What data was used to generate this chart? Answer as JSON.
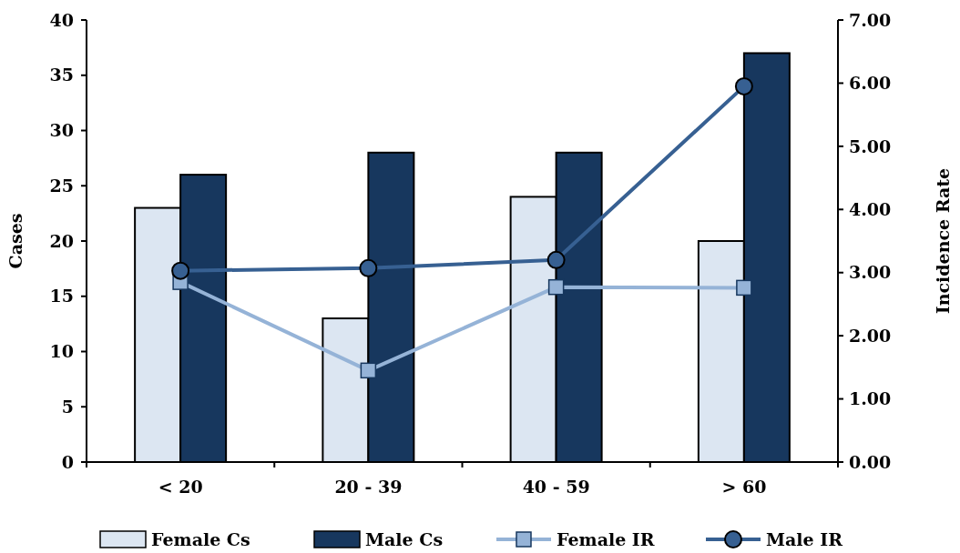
{
  "chart_data": {
    "type": "bar",
    "ylabel": "Cases",
    "y2label": "Incidence Rate",
    "categories": [
      "< 20",
      "20 - 39",
      "40 - 59",
      "> 60"
    ],
    "series": [
      {
        "name": "Female Cs",
        "color": "#dce6f2",
        "values": [
          23,
          13,
          24,
          20
        ]
      },
      {
        "name": "Male Cs",
        "color": "#17375e",
        "values": [
          26,
          28,
          28,
          37
        ]
      },
      {
        "name": "Female IR",
        "type": "line",
        "axis": "y2",
        "color": "#95b3d7",
        "marker": "square",
        "values": [
          2.85,
          1.45,
          2.77,
          2.76
        ]
      },
      {
        "name": "Male IR",
        "type": "line",
        "axis": "y2",
        "color": "#376092",
        "marker": "circle",
        "values": [
          3.03,
          3.07,
          3.2,
          5.95
        ]
      }
    ],
    "ylim": [
      0,
      40
    ],
    "yticks": [
      0,
      5,
      10,
      15,
      20,
      25,
      30,
      35,
      40
    ],
    "y2lim": [
      0,
      7
    ],
    "y2ticks": [
      {
        "value": 0,
        "label": "0.00"
      },
      {
        "value": 1,
        "label": "1.00"
      },
      {
        "value": 2,
        "label": "2.00"
      },
      {
        "value": 3,
        "label": "3.00"
      },
      {
        "value": 4,
        "label": "4.00"
      },
      {
        "value": 5,
        "label": "5.00"
      },
      {
        "value": 6,
        "label": "6.00"
      },
      {
        "value": 7,
        "label": "7.00"
      }
    ],
    "grid": false,
    "legend": "bottom"
  }
}
